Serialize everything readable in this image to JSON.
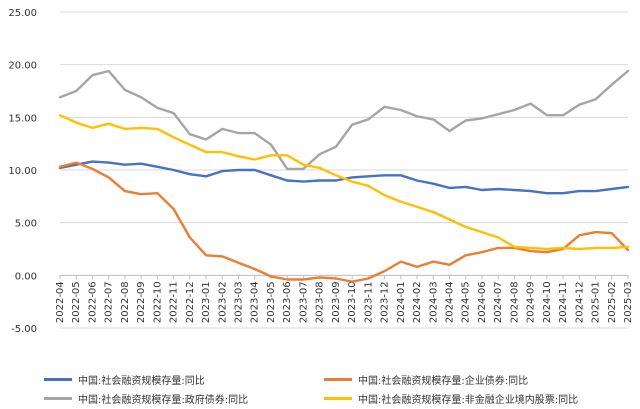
{
  "chart_data": {
    "type": "line",
    "title": "",
    "xlabel": "",
    "ylabel": "",
    "ylim": [
      -5,
      25
    ],
    "yticks": [
      "-5.00",
      "0.00",
      "5.00",
      "10.00",
      "15.00",
      "20.00",
      "25.00"
    ],
    "grid": true,
    "legend_position": "bottom",
    "categories": [
      "2022-04",
      "2022-05",
      "2022-06",
      "2022-07",
      "2022-08",
      "2022-09",
      "2022-10",
      "2022-11",
      "2022-12",
      "2023-01",
      "2023-02",
      "2023-03",
      "2023-04",
      "2023-05",
      "2023-06",
      "2023-07",
      "2023-08",
      "2023-09",
      "2023-10",
      "2023-11",
      "2023-12",
      "2024-01",
      "2024-02",
      "2024-03",
      "2024-04",
      "2024-05",
      "2024-06",
      "2024-07",
      "2024-08",
      "2024-09",
      "2024-10",
      "2024-11",
      "2024-12",
      "2025-01",
      "2025-02",
      "2025-03"
    ],
    "series": [
      {
        "name": "中国:社会融资规模存量:同比",
        "color": "#4472c4",
        "values": [
          10.2,
          10.5,
          10.8,
          10.7,
          10.5,
          10.6,
          10.3,
          10.0,
          9.6,
          9.4,
          9.9,
          10.0,
          10.0,
          9.5,
          9.0,
          8.9,
          9.0,
          9.0,
          9.3,
          9.4,
          9.5,
          9.5,
          9.0,
          8.7,
          8.3,
          8.4,
          8.1,
          8.2,
          8.1,
          8.0,
          7.8,
          7.8,
          8.0,
          8.0,
          8.2,
          8.4
        ]
      },
      {
        "name": "中国:社会融资规模存量:企业债券:同比",
        "color": "#ed7d31",
        "values": [
          10.3,
          10.7,
          10.1,
          9.3,
          8.0,
          7.7,
          7.8,
          6.3,
          3.6,
          1.9,
          1.8,
          1.2,
          0.6,
          -0.1,
          -0.4,
          -0.4,
          -0.2,
          -0.3,
          -0.6,
          -0.3,
          0.4,
          1.3,
          0.8,
          1.3,
          1.0,
          1.9,
          2.2,
          2.6,
          2.6,
          2.3,
          2.2,
          2.5,
          3.8,
          4.1,
          4.0,
          2.4
        ]
      },
      {
        "name": "中国:社会融资规模存量:政府债券:同比",
        "color": "#a5a5a5",
        "values": [
          16.9,
          17.5,
          19.0,
          19.4,
          17.6,
          16.9,
          15.9,
          15.4,
          13.4,
          12.9,
          13.9,
          13.5,
          13.5,
          12.4,
          10.1,
          10.1,
          11.5,
          12.2,
          14.3,
          14.8,
          16.0,
          15.7,
          15.1,
          14.8,
          13.7,
          14.7,
          14.9,
          15.3,
          15.7,
          16.3,
          15.2,
          15.2,
          16.2,
          16.7,
          18.1,
          19.4
        ]
      },
      {
        "name": "中国:社会融资规模存量:非金融企业境内股票:同比",
        "color": "#ffc000",
        "values": [
          15.2,
          14.5,
          14.0,
          14.4,
          13.9,
          14.0,
          13.9,
          13.1,
          12.4,
          11.7,
          11.7,
          11.3,
          11.0,
          11.4,
          11.4,
          10.5,
          10.2,
          9.5,
          8.9,
          8.5,
          7.6,
          7.0,
          6.5,
          6.0,
          5.3,
          4.6,
          4.1,
          3.6,
          2.7,
          2.6,
          2.5,
          2.6,
          2.5,
          2.6,
          2.6,
          2.7
        ]
      }
    ]
  }
}
